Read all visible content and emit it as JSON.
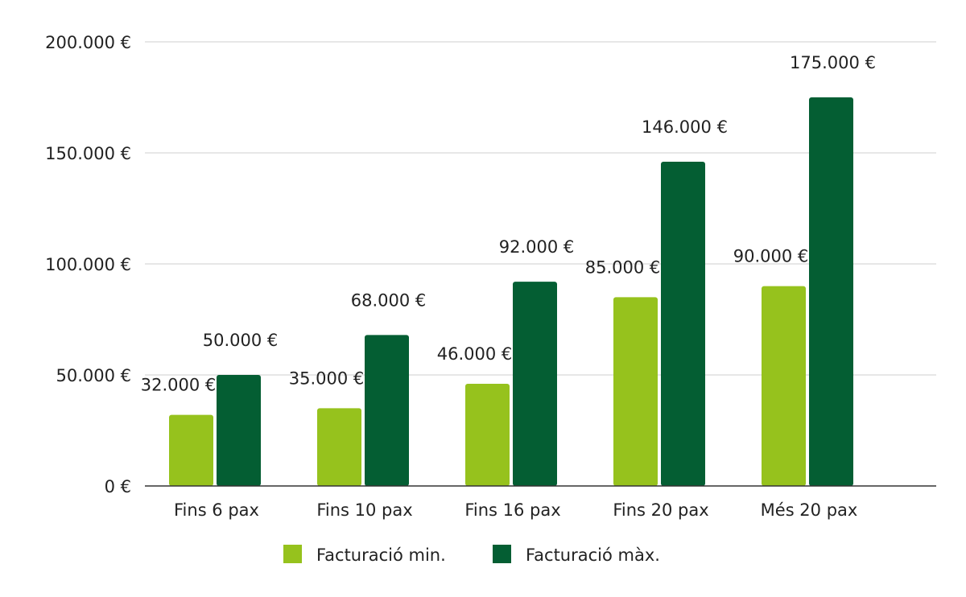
{
  "chart_data": {
    "type": "bar",
    "categories": [
      "Fins 6 pax",
      "Fins 10 pax",
      "Fins 16 pax",
      "Fins 20 pax",
      "Més 20 pax"
    ],
    "series": [
      {
        "name": "Facturació min.",
        "color": "#96c21d",
        "values": [
          32000,
          35000,
          46000,
          85000,
          90000
        ],
        "labels": [
          "32.000 €",
          "35.000 €",
          "46.000 €",
          "85.000 €",
          "90.000 €"
        ]
      },
      {
        "name": "Facturació màx.",
        "color": "#045e33",
        "values": [
          50000,
          68000,
          92000,
          146000,
          175000
        ],
        "labels": [
          "50.000 €",
          "68.000 €",
          "92.000 €",
          "146.000 €",
          "175.000 €"
        ]
      }
    ],
    "yticks": [
      0,
      50000,
      100000,
      150000,
      200000
    ],
    "ytick_labels": [
      "0 €",
      "50.000 €",
      "100.000 €",
      "150.000 €",
      "200.000 €"
    ],
    "ylim": [
      0,
      200000
    ],
    "grid": true,
    "legend": "bottom",
    "title": "",
    "xlabel": "",
    "ylabel": ""
  }
}
